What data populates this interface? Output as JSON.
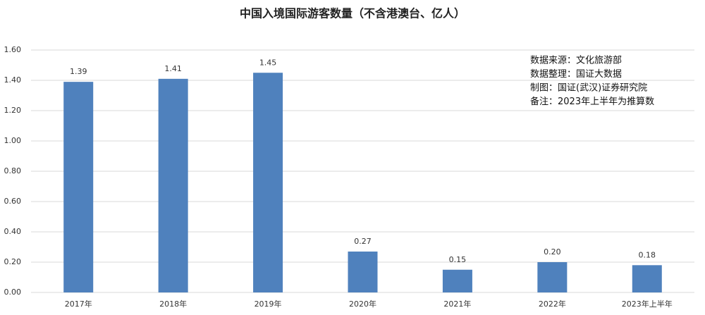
{
  "chart_data": {
    "type": "bar",
    "title": "中国入境国际游客数量（不含港澳台、亿人）",
    "annotations": [
      "数据来源：文化旅游部",
      "数据整理：国证大数据",
      "制图：国证(武汉)证券研究院",
      "备注：2023年上半年为推算数"
    ],
    "categories": [
      "2017年",
      "2018年",
      "2019年",
      "2020年",
      "2021年",
      "2022年",
      "2023年上半年"
    ],
    "values": [
      1.39,
      1.41,
      1.45,
      0.27,
      0.15,
      0.2,
      0.18
    ],
    "value_labels": [
      "1.39",
      "1.41",
      "1.45",
      "0.27",
      "0.15",
      "0.20",
      "0.18"
    ],
    "color": "#4f81bd",
    "ylim": [
      0,
      1.6
    ],
    "yticks": [
      {
        "value": 0,
        "label": "0.00"
      },
      {
        "value": 0.2,
        "label": "0.20"
      },
      {
        "value": 0.4,
        "label": "0.40"
      },
      {
        "value": 0.6,
        "label": "0.60"
      },
      {
        "value": 0.8,
        "label": "0.80"
      },
      {
        "value": 1,
        "label": "1.00"
      },
      {
        "value": 1.2,
        "label": "1.20"
      },
      {
        "value": 1.4,
        "label": "1.40"
      },
      {
        "value": 1.6,
        "label": "1.60"
      }
    ],
    "grid": true
  }
}
